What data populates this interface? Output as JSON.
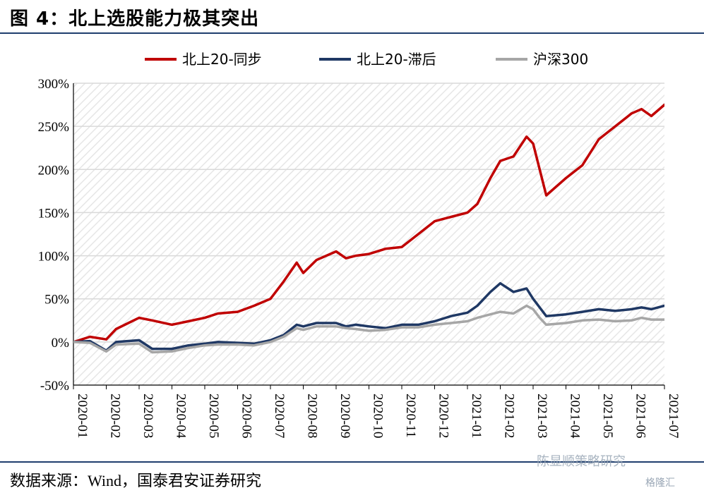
{
  "page": {
    "figure_title": "图 4：北上选股能力极其突出",
    "source_note": "数据来源：Wind，国泰君安证券研究",
    "watermark": "陈显顺策略研究",
    "watermark_brand": "格隆汇"
  },
  "colors": {
    "series_1": "#c00000",
    "series_2": "#1f3864",
    "series_3": "#a6a6a6",
    "rule": "#1f3e6e",
    "grid": "#d9d9d9"
  },
  "chart_data": {
    "type": "line",
    "title": "",
    "xlabel": "",
    "ylabel": "",
    "ylim": [
      -50,
      300
    ],
    "y_ticks": [
      -50,
      0,
      50,
      100,
      150,
      200,
      250,
      300
    ],
    "y_tick_labels": [
      "-50%",
      "0%",
      "50%",
      "100%",
      "150%",
      "200%",
      "250%",
      "300%"
    ],
    "categories": [
      "2020-01",
      "2020-02",
      "2020-03",
      "2020-04",
      "2020-05",
      "2020-06",
      "2020-07",
      "2020-08",
      "2020-09",
      "2020-10",
      "2020-11",
      "2020-12",
      "2021-01",
      "2021-02",
      "2021-03",
      "2021-04",
      "2021-05",
      "2021-06",
      "2021-07"
    ],
    "x": [
      0,
      0.5,
      1,
      1.3,
      2,
      2.4,
      3,
      3.5,
      4,
      4.4,
      5,
      5.5,
      6,
      6.4,
      6.8,
      7,
      7.4,
      8,
      8.3,
      8.6,
      9,
      9.5,
      10,
      10.5,
      11,
      11.5,
      12,
      12.3,
      12.7,
      13,
      13.4,
      13.8,
      14,
      14.2,
      14.4,
      15,
      15.5,
      16,
      16.5,
      17,
      17.3,
      17.6,
      18,
      18.3,
      18.6
    ],
    "series": [
      {
        "name": "北上20-同步",
        "values": [
          0,
          6,
          3,
          15,
          28,
          25,
          20,
          24,
          28,
          33,
          35,
          42,
          50,
          70,
          92,
          80,
          95,
          105,
          97,
          100,
          102,
          108,
          110,
          125,
          140,
          145,
          150,
          160,
          190,
          210,
          215,
          238,
          230,
          200,
          170,
          190,
          205,
          235,
          250,
          265,
          270,
          262,
          275,
          260,
          270
        ]
      },
      {
        "name": "北上20-滞后",
        "values": [
          0,
          1,
          -10,
          0,
          2,
          -8,
          -8,
          -4,
          -2,
          0,
          -1,
          -2,
          2,
          8,
          20,
          18,
          22,
          22,
          18,
          20,
          18,
          16,
          20,
          20,
          24,
          30,
          34,
          42,
          58,
          68,
          58,
          62,
          50,
          40,
          30,
          32,
          35,
          38,
          36,
          38,
          40,
          38,
          42,
          40,
          45
        ]
      },
      {
        "name": "沪深300",
        "values": [
          0,
          -1,
          -11,
          -3,
          -2,
          -12,
          -11,
          -7,
          -4,
          -3,
          -3,
          -4,
          0,
          6,
          16,
          14,
          18,
          18,
          16,
          15,
          13,
          14,
          17,
          17,
          20,
          22,
          24,
          28,
          32,
          35,
          33,
          42,
          38,
          28,
          20,
          22,
          25,
          26,
          24,
          25,
          28,
          26,
          26,
          24,
          24
        ]
      }
    ],
    "legend_position": "top",
    "grid": true
  }
}
